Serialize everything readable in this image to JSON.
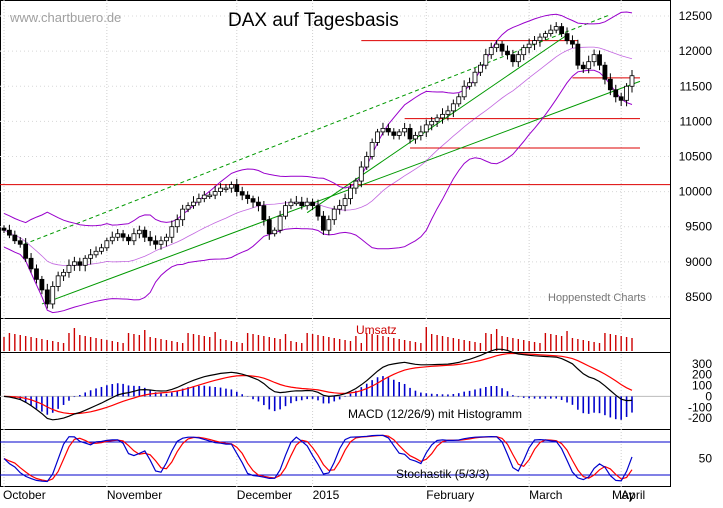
{
  "chart": {
    "watermark": "www.chartbuero.de",
    "title": "DAX auf Tagesbasis",
    "source_label": "Hoppenstedt Charts",
    "volume_label": "Umsatz",
    "macd_label": "MACD (12/26/9) mit Histogramm",
    "stoch_label": "Stochastik (5/3/3)"
  },
  "colors": {
    "price": "#000000",
    "bollinger": "#9900cc",
    "trend_green": "#009900",
    "support_red": "#dd0000",
    "volume": "#cc0000",
    "macd_line": "#000000",
    "signal_line": "#ff0000",
    "histogram": "#0000cc",
    "stoch_k": "#0000cc",
    "stoch_d": "#ff0000",
    "stoch_band": "#0000cc"
  },
  "chart_data": {
    "type": "line",
    "x_labels": [
      "October",
      "November",
      "December",
      "2015",
      "February",
      "March",
      "April",
      "May"
    ],
    "price_panel": {
      "ylim": [
        8200,
        12700
      ],
      "y_ticks": [
        8500,
        9000,
        9500,
        10000,
        10500,
        11000,
        11500,
        12000,
        12500
      ],
      "closes": [
        9450,
        9380,
        9300,
        9250,
        9050,
        8900,
        8750,
        8600,
        8400,
        8650,
        8800,
        8850,
        8950,
        9000,
        8950,
        9050,
        9100,
        9150,
        9200,
        9300,
        9350,
        9400,
        9350,
        9300,
        9400,
        9450,
        9350,
        9300,
        9250,
        9300,
        9350,
        9500,
        9600,
        9750,
        9800,
        9850,
        9900,
        9950,
        9950,
        10000,
        10050,
        10050,
        10100,
        10000,
        9950,
        9900,
        9850,
        9800,
        9600,
        9400,
        9450,
        9650,
        9800,
        9850,
        9850,
        9800,
        9850,
        9800,
        9650,
        9450,
        9600,
        9750,
        9800,
        9900,
        10050,
        10150,
        10350,
        10500,
        10700,
        10850,
        10900,
        10850,
        10800,
        10850,
        10900,
        10750,
        10800,
        10850,
        10950,
        11000,
        11050,
        11100,
        11150,
        11250,
        11350,
        11500,
        11550,
        11700,
        11800,
        11950,
        12050,
        12100,
        12000,
        11950,
        11850,
        11950,
        12050,
        12100,
        12150,
        12200,
        12250,
        12300,
        12350,
        12250,
        12150,
        12100,
        11800,
        11750,
        11850,
        11950,
        11800,
        11600,
        11450,
        11350,
        11300,
        11500,
        11650
      ],
      "horizontal_lines": [
        10100,
        10620,
        11040,
        11620
      ],
      "upper_trend_line": [
        [
          0,
          9250
        ],
        [
          112,
          12520
        ]
      ],
      "lower_trend_line": [
        [
          0,
          8400
        ],
        [
          116,
          11570
        ]
      ],
      "steep_support_line": [
        [
          56,
          9700
        ],
        [
          104,
          12230
        ]
      ]
    },
    "macd_panel": {
      "ylim": [
        -300,
        400
      ],
      "y_ticks": [
        300,
        200,
        100,
        0,
        -100,
        -200
      ],
      "y_tick_labels": [
        "300",
        "200",
        "100",
        "0",
        "-100",
        "-200"
      ]
    },
    "stoch_panel": {
      "ylim": [
        0,
        100
      ],
      "y_ticks": [
        50
      ],
      "bands": [
        20,
        80
      ]
    }
  }
}
